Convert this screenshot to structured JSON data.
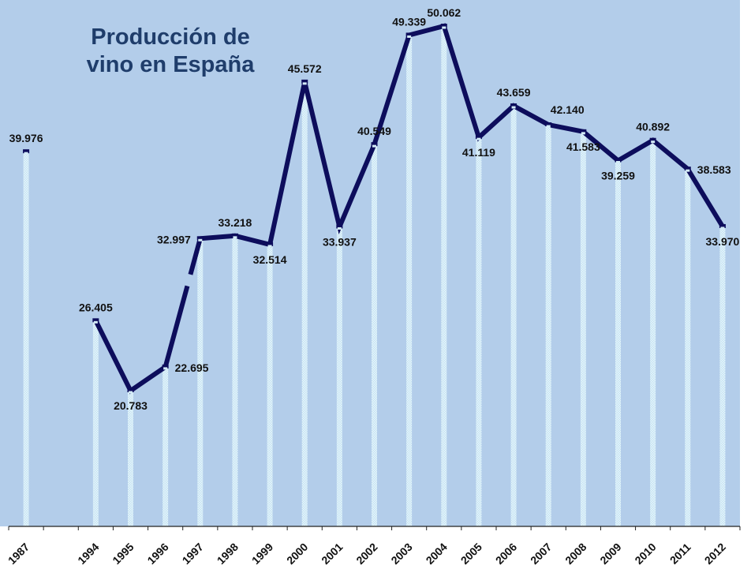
{
  "chart_data": {
    "type": "line",
    "title": [
      "Producción de",
      "vino en España"
    ],
    "xlabel": "",
    "ylabel": "",
    "ylim": [
      10,
      52
    ],
    "grid": false,
    "legend": "none",
    "categories": [
      "1987",
      "",
      "1994",
      "1995",
      "1996",
      "1997",
      "1998",
      "1999",
      "2000",
      "2001",
      "2002",
      "2003",
      "2004",
      "2005",
      "2006",
      "2007",
      "2008",
      "2009",
      "2010",
      "2011",
      "2012"
    ],
    "tick_labels": [
      "1987",
      "1994",
      "1995",
      "1996",
      "1997",
      "1998",
      "1999",
      "2000",
      "2001",
      "2002",
      "2003",
      "2004",
      "2005",
      "2006",
      "2007",
      "2008",
      "2009",
      "2010",
      "2011",
      "2012"
    ],
    "series": [
      {
        "name": "Producción de vino",
        "values": [
          39.976,
          null,
          26.405,
          20.783,
          22.695,
          32.997,
          33.218,
          32.514,
          45.572,
          33.937,
          40.549,
          49.339,
          50.062,
          41.119,
          43.659,
          42.14,
          41.583,
          39.259,
          40.892,
          38.583,
          33.97
        ],
        "labels": [
          "39.976",
          "",
          "26.405",
          "20.783",
          "22.695",
          "32.997",
          "33.218",
          "32.514",
          "45.572",
          "33.937",
          "40.549",
          "49.339",
          "50.062",
          "41.119",
          "43.659",
          "42.140",
          "41.583",
          "39.259",
          "40.892",
          "38.583",
          "33.970"
        ],
        "label_position": [
          "above",
          "",
          "above",
          "below",
          "right",
          "left",
          "above",
          "below",
          "above",
          "below",
          "above",
          "above",
          "above",
          "below",
          "above",
          "above-right",
          "below",
          "below",
          "above",
          "right",
          "below"
        ]
      }
    ],
    "colors": {
      "plot_background": "#b3cdea",
      "line": "#0d0d5c",
      "drop_line": "#d4ecf7",
      "text": "#111111",
      "title": "#1f3d6b"
    }
  }
}
